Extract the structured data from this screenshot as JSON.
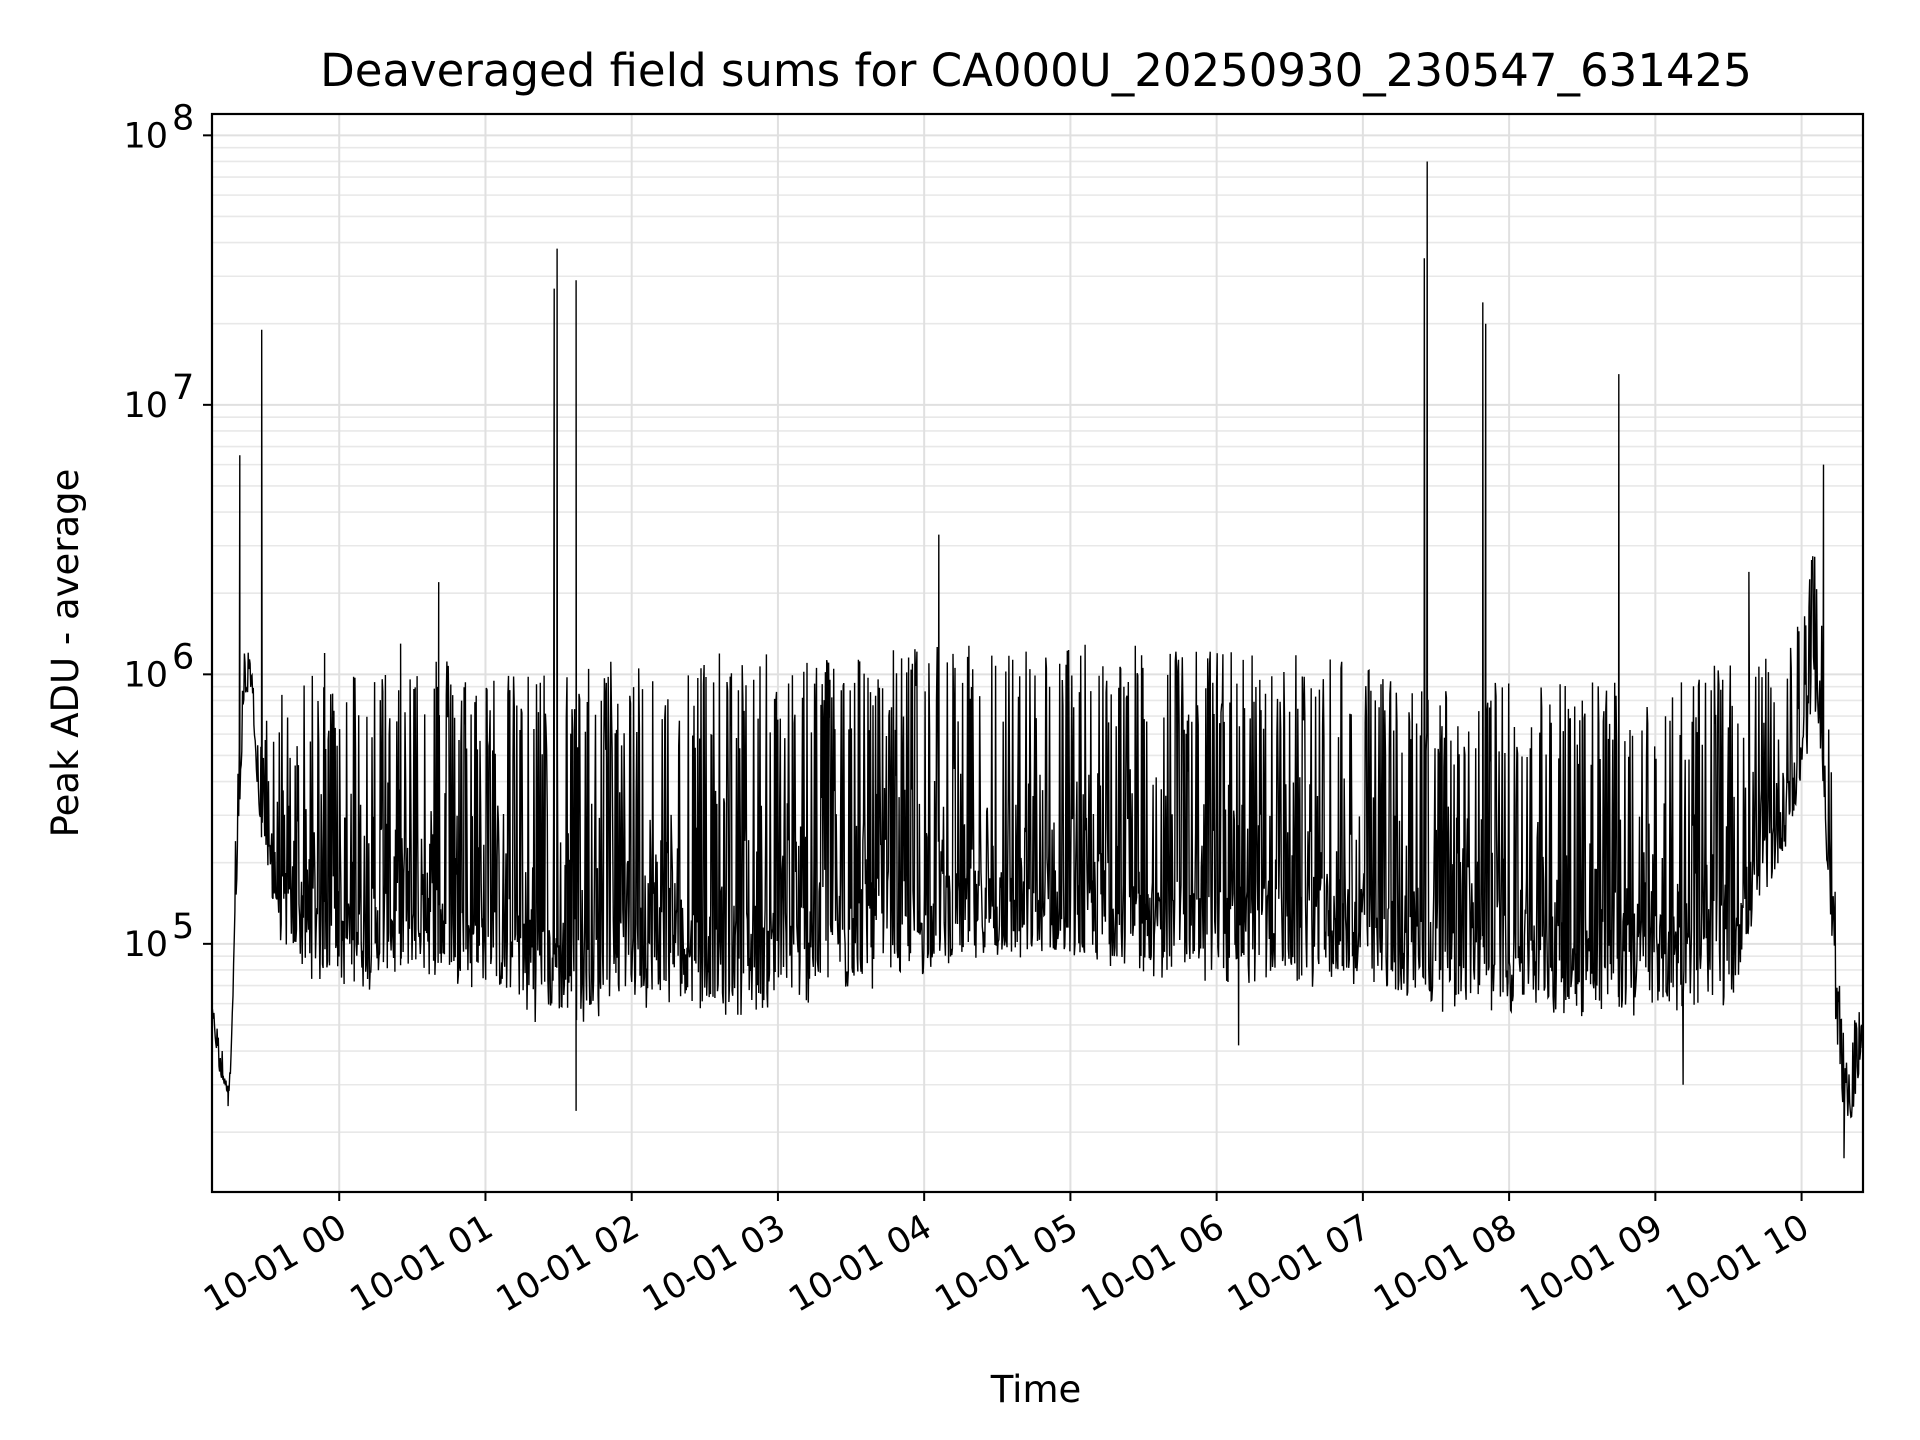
{
  "chart_data": {
    "type": "line",
    "title": "Deaveraged field sums for CA000U_20250930_230547_631425",
    "xlabel": "Time",
    "ylabel": "Peak ADU - average",
    "yscale": "log",
    "ylim": [
      12000,
      120000000
    ],
    "xlim_hours": [
      -0.87,
      10.42
    ],
    "grid": true,
    "line_color": "#000000",
    "y_ticks": [
      {
        "value": 100000,
        "base": "10",
        "exp": "5"
      },
      {
        "value": 1000000,
        "base": "10",
        "exp": "6"
      },
      {
        "value": 10000000,
        "base": "10",
        "exp": "7"
      },
      {
        "value": 100000000,
        "base": "10",
        "exp": "8"
      }
    ],
    "x_ticks": [
      {
        "hour": 0,
        "label": "10-01 00"
      },
      {
        "hour": 1,
        "label": "10-01 01"
      },
      {
        "hour": 2,
        "label": "10-01 02"
      },
      {
        "hour": 3,
        "label": "10-01 03"
      },
      {
        "hour": 4,
        "label": "10-01 04"
      },
      {
        "hour": 5,
        "label": "10-01 05"
      },
      {
        "hour": 6,
        "label": "10-01 06"
      },
      {
        "hour": 7,
        "label": "10-01 07"
      },
      {
        "hour": 8,
        "label": "10-01 08"
      },
      {
        "hour": 9,
        "label": "10-01 09"
      },
      {
        "hour": 10,
        "label": "10-01 10"
      }
    ],
    "series": [
      {
        "name": "Deaveraged field sums",
        "description": "approximate envelope of the dense time series (hours since 10-01 00, low/high per time step)",
        "envelope": {
          "hour": [
            -0.87,
            -0.82,
            -0.78,
            -0.75,
            -0.7,
            -0.65,
            -0.6,
            -0.55,
            -0.5,
            -0.45,
            -0.4,
            -0.3,
            -0.2,
            -0.1,
            0.0,
            0.2,
            0.4,
            0.6,
            0.8,
            1.0,
            1.2,
            1.4,
            1.6,
            1.8,
            2.0,
            2.3,
            2.6,
            3.0,
            3.5,
            4.0,
            4.5,
            5.0,
            5.5,
            6.0,
            6.5,
            7.0,
            7.2,
            7.5,
            8.0,
            8.5,
            9.0,
            9.5,
            9.8,
            9.95,
            10.05,
            10.1,
            10.15,
            10.2,
            10.25,
            10.3,
            10.35,
            10.42
          ],
          "low": [
            55000,
            32000,
            28000,
            26000,
            150000,
            700000,
            900000,
            280000,
            180000,
            120000,
            80000,
            70000,
            65000,
            60000,
            60000,
            58000,
            62000,
            65000,
            60000,
            55000,
            48000,
            42000,
            40000,
            45000,
            50000,
            48000,
            45000,
            48000,
            55000,
            65000,
            70000,
            70000,
            65000,
            60000,
            60000,
            58000,
            50000,
            48000,
            47000,
            45000,
            45000,
            50000,
            150000,
            250000,
            500000,
            700000,
            300000,
            100000,
            30000,
            18000,
            22000,
            40000
          ],
          "high": [
            60000,
            45000,
            40000,
            45000,
            400000,
            1200000,
            1400000,
            500000,
            700000,
            700000,
            900000,
            800000,
            1000000,
            1000000,
            1100000,
            1100000,
            1100000,
            1400000,
            1100000,
            1050000,
            1000000,
            1050000,
            1100000,
            1150000,
            1200000,
            1200000,
            1200000,
            1200000,
            1250000,
            1280000,
            1300000,
            1300000,
            1280000,
            1250000,
            1200000,
            1200000,
            950000,
            950000,
            950000,
            1000000,
            1000000,
            1100000,
            1150000,
            1500000,
            2500000,
            3000000,
            1500000,
            600000,
            80000,
            40000,
            50000,
            65000
          ]
        },
        "spikes": [
          {
            "hour": -0.68,
            "value": 6500000
          },
          {
            "hour": -0.53,
            "value": 19000000
          },
          {
            "hour": -0.1,
            "value": 1200000
          },
          {
            "hour": 0.42,
            "value": 1300000
          },
          {
            "hour": 0.68,
            "value": 2200000
          },
          {
            "hour": 1.47,
            "value": 27000000
          },
          {
            "hour": 1.49,
            "value": 38000000
          },
          {
            "hour": 1.62,
            "value": 29000000
          },
          {
            "hour": 4.1,
            "value": 3300000
          },
          {
            "hour": 7.42,
            "value": 35000000
          },
          {
            "hour": 7.44,
            "value": 80000000
          },
          {
            "hour": 7.82,
            "value": 24000000
          },
          {
            "hour": 7.84,
            "value": 20000000
          },
          {
            "hour": 8.75,
            "value": 13000000
          },
          {
            "hour": 9.64,
            "value": 2400000
          },
          {
            "hour": 10.15,
            "value": 6000000
          }
        ],
        "dips": [
          {
            "hour": -0.76,
            "value": 25000
          },
          {
            "hour": 1.62,
            "value": 24000
          },
          {
            "hour": 6.15,
            "value": 42000
          },
          {
            "hour": 9.19,
            "value": 30000
          },
          {
            "hour": 10.29,
            "value": 16000
          }
        ]
      }
    ]
  }
}
